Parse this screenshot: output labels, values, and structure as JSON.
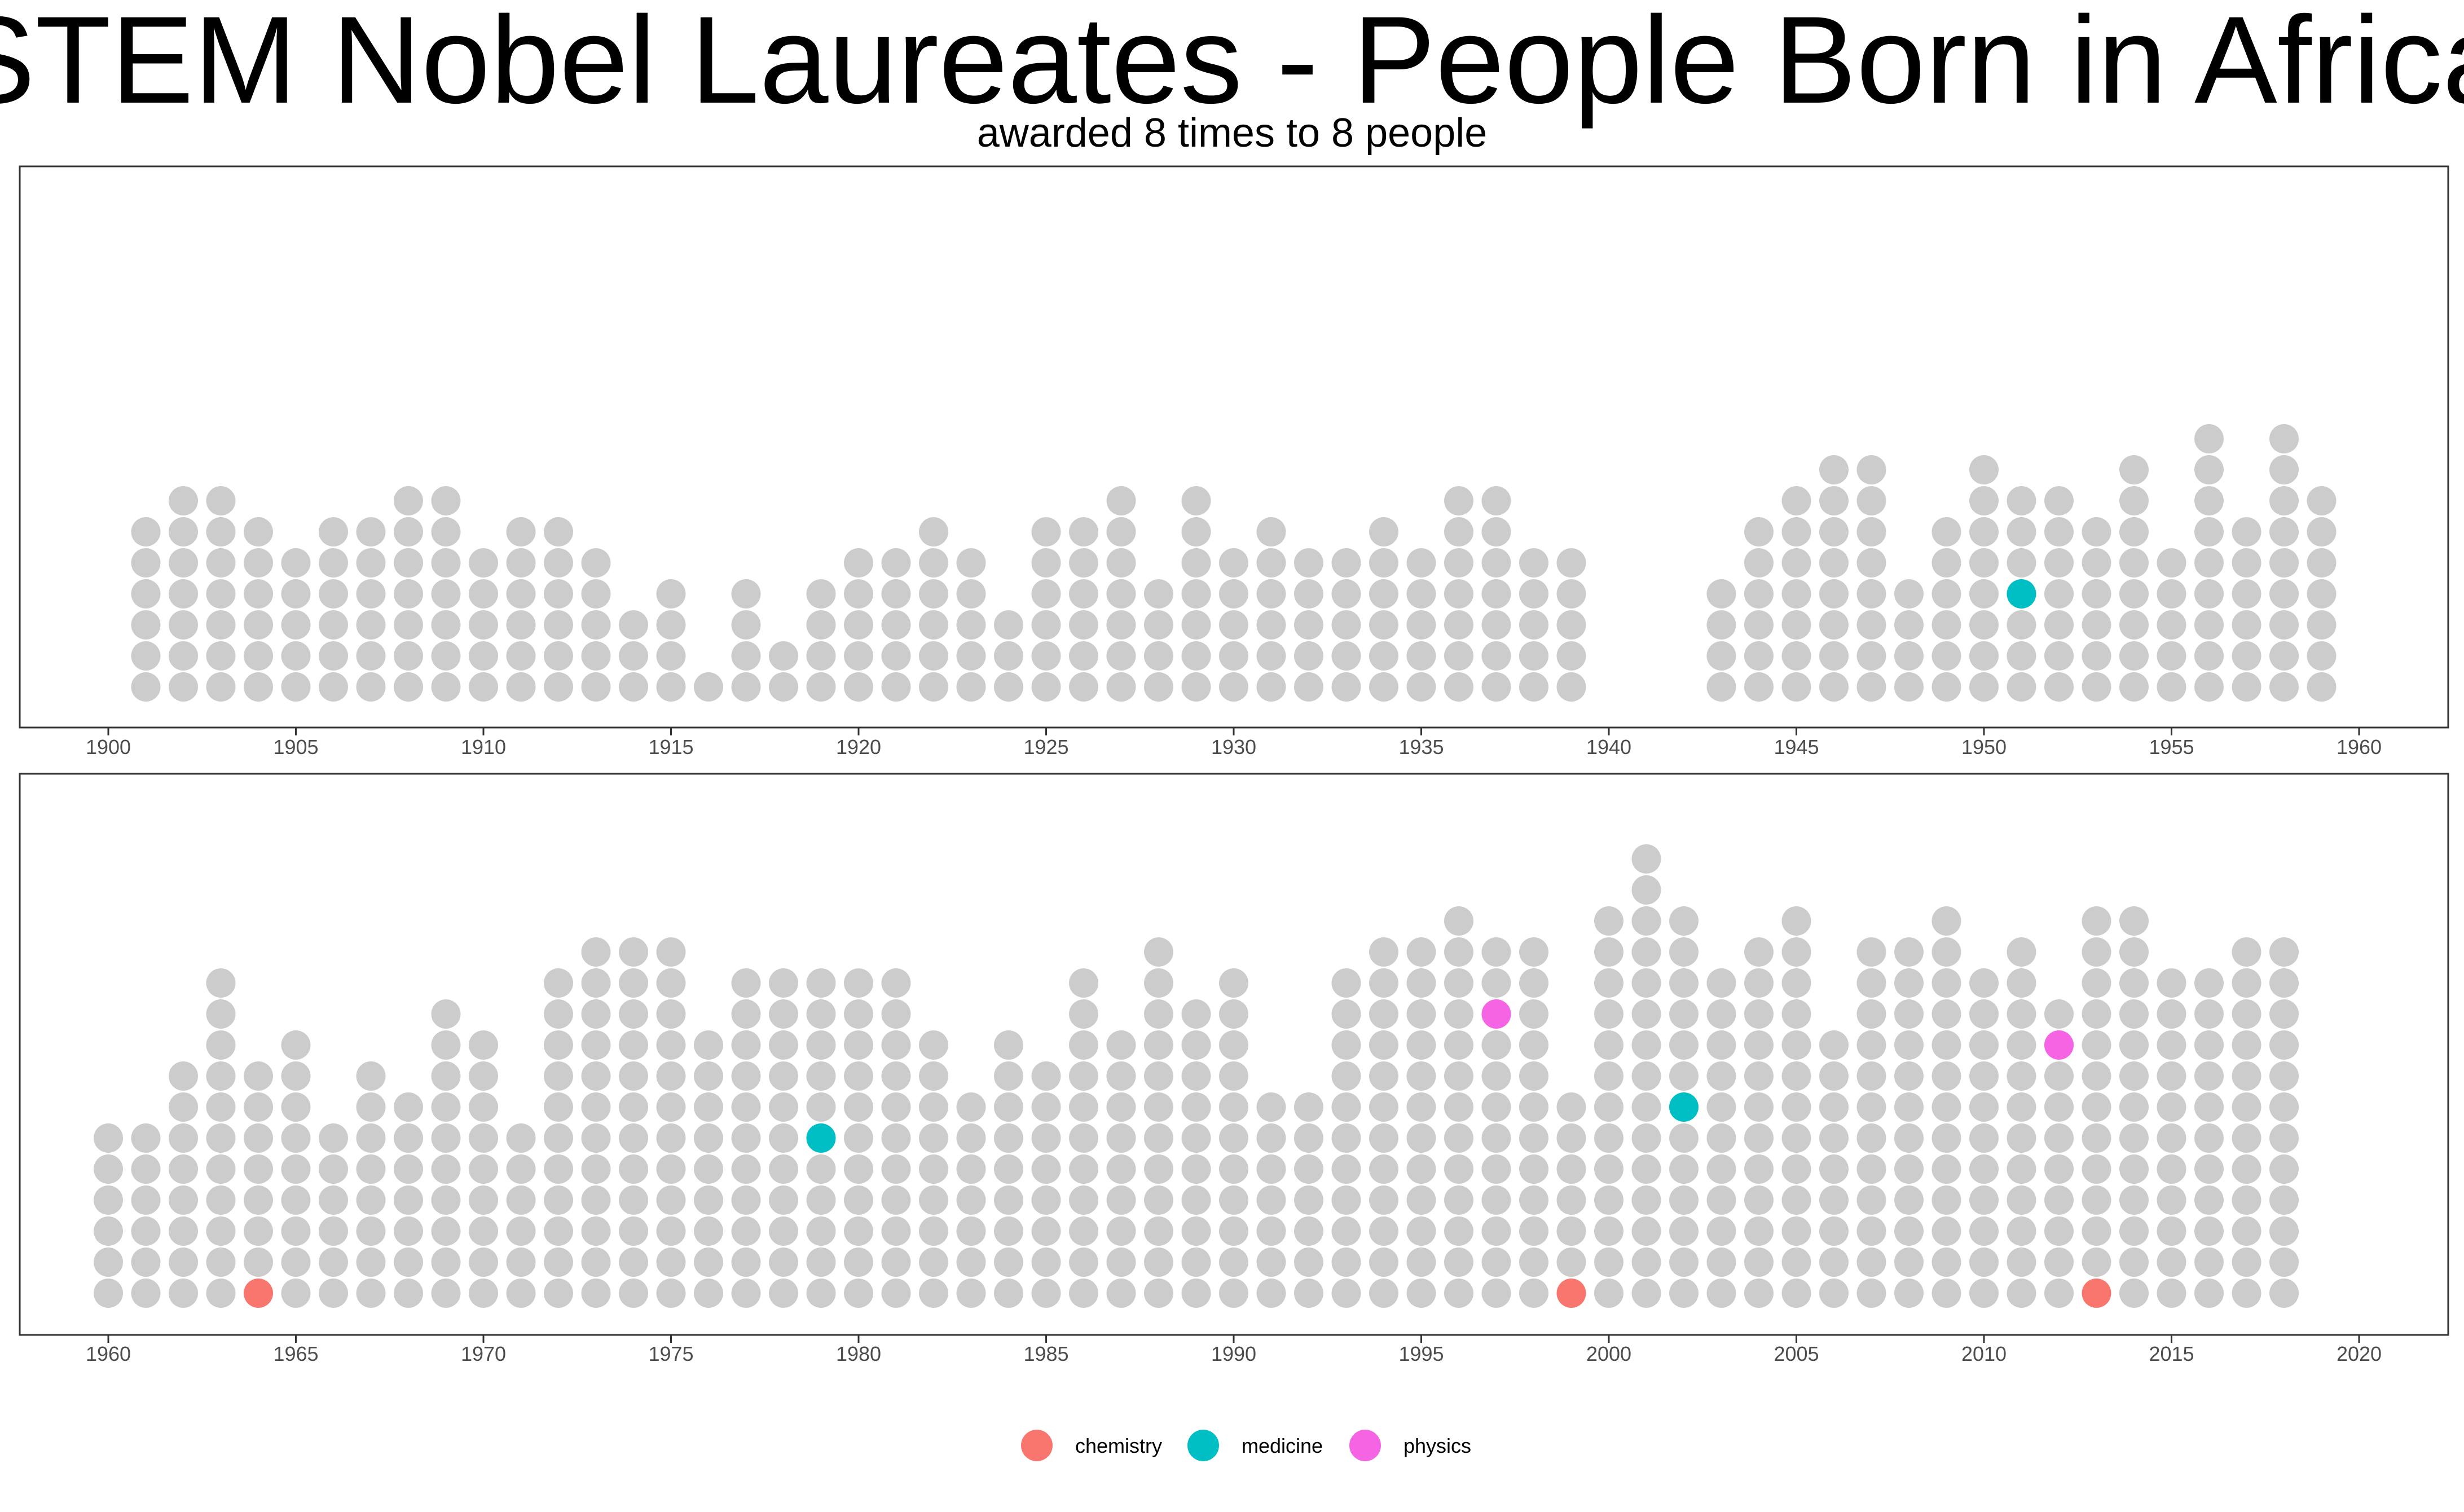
{
  "chart_data": {
    "type": "scatter",
    "title": "STEM Nobel Laureates - People Born in Africa",
    "subtitle": "awarded 8 times to 8 people",
    "colors": {
      "background_dot": "#cccccc",
      "chemistry": "#F8766D",
      "medicine": "#00BFC4",
      "physics": "#F564E3"
    },
    "legend": {
      "position": "bottom",
      "entries": [
        {
          "key": "chemistry",
          "label": "chemistry"
        },
        {
          "key": "medicine",
          "label": "medicine"
        },
        {
          "key": "physics",
          "label": "physics"
        }
      ]
    },
    "panels": [
      {
        "xlim": [
          1900,
          1960
        ],
        "xticks": [
          1900,
          1905,
          1910,
          1915,
          1920,
          1925,
          1930,
          1935,
          1940,
          1945,
          1950,
          1955,
          1960
        ],
        "years": [
          1901,
          1902,
          1903,
          1904,
          1905,
          1906,
          1907,
          1908,
          1909,
          1910,
          1911,
          1912,
          1913,
          1914,
          1915,
          1916,
          1917,
          1918,
          1919,
          1920,
          1921,
          1922,
          1923,
          1924,
          1925,
          1926,
          1927,
          1928,
          1929,
          1930,
          1931,
          1932,
          1933,
          1934,
          1935,
          1936,
          1937,
          1938,
          1939,
          1943,
          1944,
          1945,
          1946,
          1947,
          1948,
          1949,
          1950,
          1951,
          1952,
          1953,
          1954,
          1955,
          1956,
          1957,
          1958,
          1959
        ],
        "counts": [
          6,
          7,
          7,
          6,
          5,
          6,
          6,
          7,
          7,
          5,
          6,
          6,
          5,
          3,
          4,
          1,
          4,
          2,
          4,
          5,
          5,
          6,
          5,
          3,
          6,
          6,
          7,
          4,
          7,
          5,
          6,
          5,
          5,
          6,
          5,
          7,
          7,
          5,
          5,
          4,
          6,
          7,
          8,
          8,
          4,
          6,
          8,
          7,
          7,
          6,
          8,
          5,
          9,
          6,
          9,
          7
        ],
        "highlights": [
          {
            "year": 1951,
            "level": 4,
            "field": "medicine"
          }
        ]
      },
      {
        "xlim": [
          1960,
          2020
        ],
        "xticks": [
          1960,
          1965,
          1970,
          1975,
          1980,
          1985,
          1990,
          1995,
          2000,
          2005,
          2010,
          2015,
          2020
        ],
        "years": [
          1960,
          1961,
          1962,
          1963,
          1964,
          1965,
          1966,
          1967,
          1968,
          1969,
          1970,
          1971,
          1972,
          1973,
          1974,
          1975,
          1976,
          1977,
          1978,
          1979,
          1980,
          1981,
          1982,
          1983,
          1984,
          1985,
          1986,
          1987,
          1988,
          1989,
          1990,
          1991,
          1992,
          1993,
          1994,
          1995,
          1996,
          1997,
          1998,
          1999,
          2000,
          2001,
          2002,
          2003,
          2004,
          2005,
          2006,
          2007,
          2008,
          2009,
          2010,
          2011,
          2012,
          2013,
          2014,
          2015,
          2016,
          2017,
          2018
        ],
        "counts": [
          6,
          6,
          8,
          11,
          8,
          9,
          6,
          8,
          7,
          10,
          9,
          6,
          11,
          12,
          12,
          12,
          9,
          11,
          11,
          11,
          11,
          11,
          9,
          7,
          9,
          8,
          11,
          9,
          12,
          10,
          11,
          7,
          7,
          11,
          12,
          12,
          13,
          12,
          12,
          7,
          13,
          15,
          13,
          11,
          12,
          13,
          9,
          12,
          12,
          13,
          11,
          12,
          10,
          13,
          13,
          11,
          11,
          12,
          12
        ],
        "highlights": [
          {
            "year": 1964,
            "level": 1,
            "field": "chemistry"
          },
          {
            "year": 1979,
            "level": 6,
            "field": "medicine"
          },
          {
            "year": 1997,
            "level": 10,
            "field": "physics"
          },
          {
            "year": 1999,
            "level": 1,
            "field": "chemistry"
          },
          {
            "year": 2002,
            "level": 7,
            "field": "medicine"
          },
          {
            "year": 2012,
            "level": 9,
            "field": "physics"
          },
          {
            "year": 2013,
            "level": 1,
            "field": "chemistry"
          }
        ]
      }
    ]
  }
}
